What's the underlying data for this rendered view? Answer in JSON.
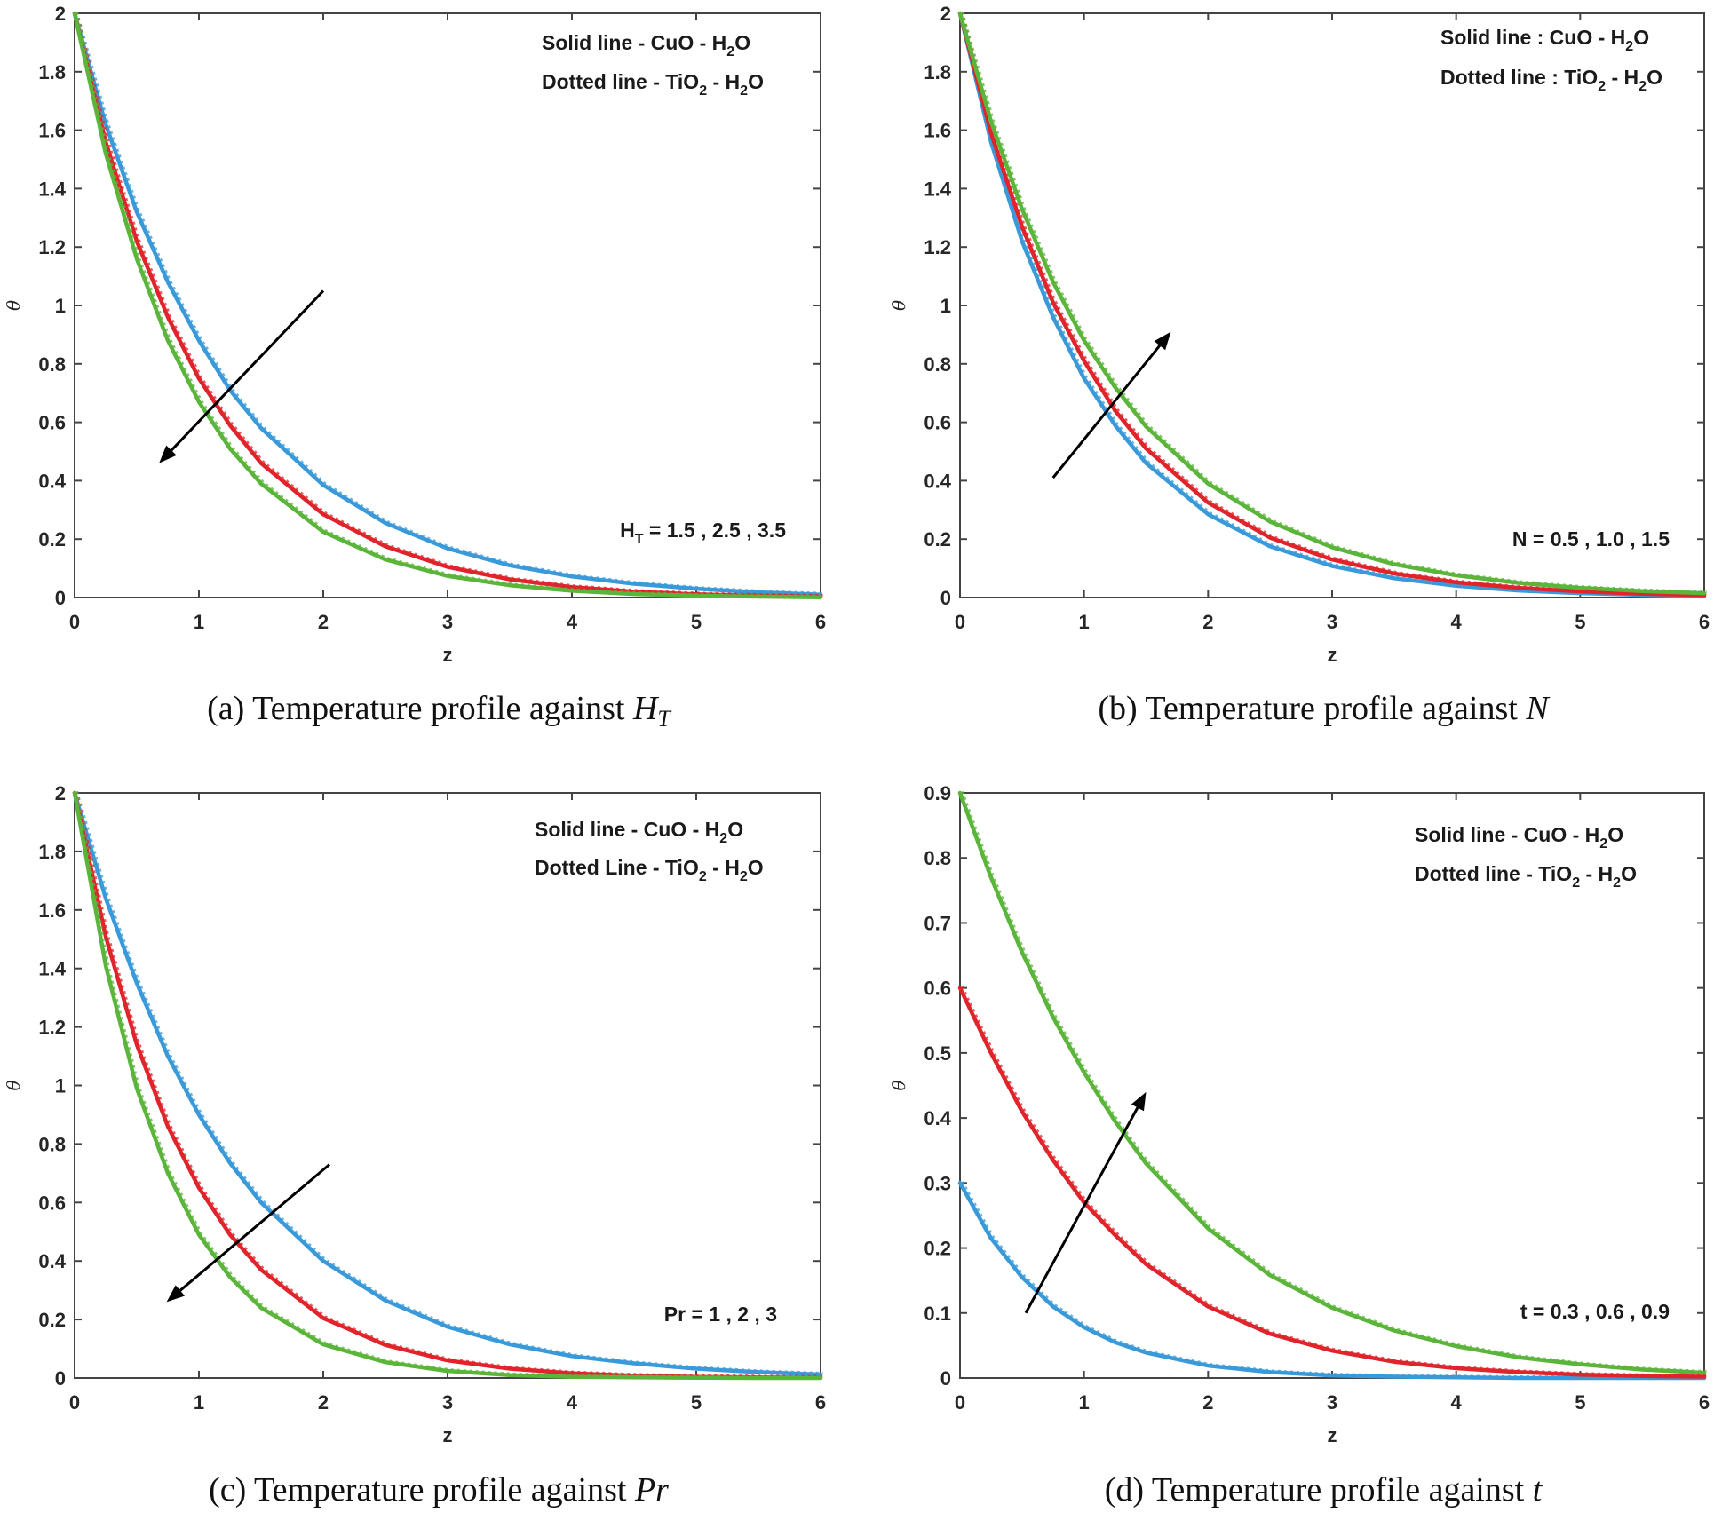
{
  "colors": {
    "series": [
      "#3a9ad9",
      "#e0242b",
      "#5ab53a"
    ],
    "axis": "#444444",
    "text": "#262626"
  },
  "chart_data": [
    {
      "id": "a",
      "type": "line",
      "caption": {
        "prefix": "(a)  Temperature profile against ",
        "symbol": "H",
        "subscript": "T"
      },
      "xlabel": "z",
      "ylabel": "θ",
      "xlim": [
        0,
        6
      ],
      "ylim": [
        0,
        2
      ],
      "xticks": [
        0,
        1,
        2,
        3,
        4,
        5,
        6
      ],
      "yticks": [
        0,
        0.2,
        0.4,
        0.6,
        0.8,
        1,
        1.2,
        1.4,
        1.6,
        1.8,
        2
      ],
      "ytick_labels": [
        "0",
        "0.2",
        "0.4",
        "0.6",
        "0.8",
        "1",
        "1.2",
        "1.4",
        "1.6",
        "1.8",
        "2"
      ],
      "legend": {
        "line1": {
          "text": "Solid line - CuO - H",
          "sub": "2",
          "after": "O"
        },
        "line2": {
          "text": "Dotted line - TiO",
          "sub": "2",
          "mid": " - H",
          "sub2": "2",
          "after": "O"
        }
      },
      "parameter": {
        "base": "H",
        "sub": "T",
        "rest": " = 1.5 , 2.5 , 3.5"
      },
      "arrow": {
        "from": [
          2.0,
          1.05
        ],
        "to": [
          0.68,
          0.46
        ]
      },
      "series": [
        {
          "name": "H_T = 1.5",
          "x": [
            0,
            0.25,
            0.5,
            0.75,
            1,
            1.25,
            1.5,
            2,
            2.5,
            3,
            3.5,
            4,
            4.5,
            5,
            5.5,
            6
          ],
          "values": [
            2.0,
            1.62,
            1.32,
            1.08,
            0.88,
            0.71,
            0.58,
            0.385,
            0.255,
            0.168,
            0.11,
            0.072,
            0.047,
            0.03,
            0.018,
            0.01
          ]
        },
        {
          "name": "H_T = 2.5",
          "x": [
            0,
            0.25,
            0.5,
            0.75,
            1,
            1.25,
            1.5,
            2,
            2.5,
            3,
            3.5,
            4,
            4.5,
            5,
            5.5,
            6
          ],
          "values": [
            2.0,
            1.56,
            1.22,
            0.96,
            0.75,
            0.59,
            0.46,
            0.285,
            0.175,
            0.105,
            0.062,
            0.036,
            0.02,
            0.011,
            0.006,
            0.003
          ]
        },
        {
          "name": "H_T = 3.5",
          "x": [
            0,
            0.25,
            0.5,
            0.75,
            1,
            1.25,
            1.5,
            2,
            2.5,
            3,
            3.5,
            4,
            4.5,
            5,
            5.5,
            6
          ],
          "values": [
            2.0,
            1.52,
            1.16,
            0.88,
            0.67,
            0.51,
            0.39,
            0.225,
            0.13,
            0.074,
            0.042,
            0.023,
            0.012,
            0.006,
            0.003,
            0.001
          ]
        }
      ]
    },
    {
      "id": "b",
      "type": "line",
      "caption": {
        "prefix": "(b)  Temperature profile against ",
        "symbol": "N",
        "subscript": ""
      },
      "xlabel": "z",
      "ylabel": "θ",
      "xlim": [
        0,
        6
      ],
      "ylim": [
        0,
        2
      ],
      "xticks": [
        0,
        1,
        2,
        3,
        4,
        5,
        6
      ],
      "yticks": [
        0,
        0.2,
        0.4,
        0.6,
        0.8,
        1,
        1.2,
        1.4,
        1.6,
        1.8,
        2
      ],
      "ytick_labels": [
        "0",
        "0.2",
        "0.4",
        "0.6",
        "0.8",
        "1",
        "1.2",
        "1.4",
        "1.6",
        "1.8",
        "2"
      ],
      "legend": {
        "line1": {
          "text": "Solid line : CuO - H",
          "sub": "2",
          "after": "O"
        },
        "line2": {
          "text": "Dotted line : TiO",
          "sub": "2",
          "mid": " - H",
          "sub2": "2",
          "after": "O"
        }
      },
      "parameter": {
        "base": "N",
        "sub": "",
        "rest": " = 0.5 , 1.0 , 1.5"
      },
      "arrow": {
        "from": [
          0.75,
          0.41
        ],
        "to": [
          1.7,
          0.91
        ]
      },
      "series": [
        {
          "name": "N = 0.5",
          "x": [
            0,
            0.25,
            0.5,
            0.75,
            1,
            1.25,
            1.5,
            2,
            2.5,
            3,
            3.5,
            4,
            4.5,
            5,
            5.5,
            6
          ],
          "values": [
            2.0,
            1.56,
            1.22,
            0.96,
            0.75,
            0.59,
            0.46,
            0.285,
            0.175,
            0.108,
            0.066,
            0.04,
            0.024,
            0.015,
            0.009,
            0.005
          ]
        },
        {
          "name": "N = 1.0",
          "x": [
            0,
            0.25,
            0.5,
            0.75,
            1,
            1.25,
            1.5,
            2,
            2.5,
            3,
            3.5,
            4,
            4.5,
            5,
            5.5,
            6
          ],
          "values": [
            2.0,
            1.59,
            1.27,
            1.01,
            0.81,
            0.64,
            0.51,
            0.325,
            0.205,
            0.13,
            0.082,
            0.052,
            0.033,
            0.021,
            0.013,
            0.008
          ]
        },
        {
          "name": "N = 1.5",
          "x": [
            0,
            0.25,
            0.5,
            0.75,
            1,
            1.25,
            1.5,
            2,
            2.5,
            3,
            3.5,
            4,
            4.5,
            5,
            5.5,
            6
          ],
          "values": [
            2.0,
            1.63,
            1.33,
            1.08,
            0.88,
            0.72,
            0.585,
            0.39,
            0.26,
            0.172,
            0.114,
            0.076,
            0.05,
            0.033,
            0.022,
            0.015
          ]
        }
      ]
    },
    {
      "id": "c",
      "type": "line",
      "caption": {
        "prefix": "(c)  Temperature profile against ",
        "symbol": "Pr",
        "subscript": ""
      },
      "xlabel": "z",
      "ylabel": "θ",
      "xlim": [
        0,
        6
      ],
      "ylim": [
        0,
        2
      ],
      "xticks": [
        0,
        1,
        2,
        3,
        4,
        5,
        6
      ],
      "yticks": [
        0,
        0.2,
        0.4,
        0.6,
        0.8,
        1,
        1.2,
        1.4,
        1.6,
        1.8,
        2
      ],
      "ytick_labels": [
        "0",
        "0.2",
        "0.4",
        "0.6",
        "0.8",
        "1",
        "1.2",
        "1.4",
        "1.6",
        "1.8",
        "2"
      ],
      "legend": {
        "line1": {
          "text": "Solid line - CuO - H",
          "sub": "2",
          "after": "O"
        },
        "line2": {
          "text": "Dotted Line - TiO",
          "sub": "2",
          "mid": " - H",
          "sub2": "2",
          "after": "O"
        }
      },
      "parameter": {
        "base": "Pr",
        "sub": "",
        "rest": " = 1 , 2 , 3"
      },
      "arrow": {
        "from": [
          2.05,
          0.73
        ],
        "to": [
          0.74,
          0.26
        ]
      },
      "series": [
        {
          "name": "Pr = 1",
          "x": [
            0,
            0.25,
            0.5,
            0.75,
            1,
            1.25,
            1.5,
            2,
            2.5,
            3,
            3.5,
            4,
            4.5,
            5,
            5.5,
            6
          ],
          "values": [
            2.0,
            1.64,
            1.35,
            1.1,
            0.9,
            0.735,
            0.6,
            0.4,
            0.265,
            0.175,
            0.115,
            0.075,
            0.05,
            0.032,
            0.02,
            0.012
          ]
        },
        {
          "name": "Pr = 2",
          "x": [
            0,
            0.25,
            0.5,
            0.75,
            1,
            1.25,
            1.5,
            2,
            2.5,
            3,
            3.5,
            4,
            4.5,
            5,
            5.5,
            6
          ],
          "values": [
            2.0,
            1.51,
            1.14,
            0.86,
            0.65,
            0.49,
            0.37,
            0.205,
            0.113,
            0.06,
            0.032,
            0.016,
            0.008,
            0.004,
            0.002,
            0.001
          ]
        },
        {
          "name": "Pr = 3",
          "x": [
            0,
            0.25,
            0.5,
            0.75,
            1,
            1.25,
            1.5,
            2,
            2.5,
            3,
            3.5,
            4,
            4.5,
            5,
            5.5,
            6
          ],
          "values": [
            2.0,
            1.41,
            0.99,
            0.7,
            0.49,
            0.345,
            0.24,
            0.115,
            0.054,
            0.024,
            0.01,
            0.004,
            0.002,
            0.001,
            0,
            0
          ]
        }
      ]
    },
    {
      "id": "d",
      "type": "line",
      "caption": {
        "prefix": "(d)  Temperature profile against ",
        "symbol": "t",
        "subscript": ""
      },
      "xlabel": "z",
      "ylabel": "θ",
      "xlim": [
        0,
        6
      ],
      "ylim": [
        0,
        0.9
      ],
      "xticks": [
        0,
        1,
        2,
        3,
        4,
        5,
        6
      ],
      "yticks": [
        0,
        0.1,
        0.2,
        0.3,
        0.4,
        0.5,
        0.6,
        0.7,
        0.8,
        0.9
      ],
      "ytick_labels": [
        "0",
        "0.1",
        "0.2",
        "0.3",
        "0.4",
        "0.5",
        "0.6",
        "0.7",
        "0.8",
        "0.9"
      ],
      "legend": {
        "line1": {
          "text": "Solid line - CuO - H",
          "sub": "2",
          "after": "O"
        },
        "line2": {
          "text": "Dotted line - TiO",
          "sub": "2",
          "mid": " - H",
          "sub2": "2",
          "after": "O"
        }
      },
      "parameter": {
        "base": "t",
        "sub": "",
        "rest": " = 0.3 , 0.6 , 0.9"
      },
      "arrow": {
        "from": [
          0.53,
          0.1
        ],
        "to": [
          1.5,
          0.44
        ]
      },
      "series": [
        {
          "name": "t = 0.3",
          "x": [
            0,
            0.25,
            0.5,
            0.75,
            1,
            1.25,
            1.5,
            2,
            2.5,
            3,
            3.5,
            4,
            4.5,
            5,
            5.5,
            6
          ],
          "values": [
            0.3,
            0.215,
            0.155,
            0.11,
            0.078,
            0.055,
            0.039,
            0.019,
            0.009,
            0.004,
            0.002,
            0.001,
            0,
            0,
            0,
            0
          ]
        },
        {
          "name": "t = 0.6",
          "x": [
            0,
            0.25,
            0.5,
            0.75,
            1,
            1.25,
            1.5,
            2,
            2.5,
            3,
            3.5,
            4,
            4.5,
            5,
            5.5,
            6
          ],
          "values": [
            0.6,
            0.5,
            0.41,
            0.335,
            0.27,
            0.22,
            0.175,
            0.11,
            0.068,
            0.042,
            0.025,
            0.015,
            0.009,
            0.005,
            0.003,
            0.002
          ]
        },
        {
          "name": "t = 0.9",
          "x": [
            0,
            0.25,
            0.5,
            0.75,
            1,
            1.25,
            1.5,
            2,
            2.5,
            3,
            3.5,
            4,
            4.5,
            5,
            5.5,
            6
          ],
          "values": [
            0.9,
            0.77,
            0.655,
            0.555,
            0.47,
            0.395,
            0.33,
            0.23,
            0.158,
            0.108,
            0.073,
            0.049,
            0.032,
            0.021,
            0.013,
            0.008
          ]
        }
      ]
    }
  ]
}
